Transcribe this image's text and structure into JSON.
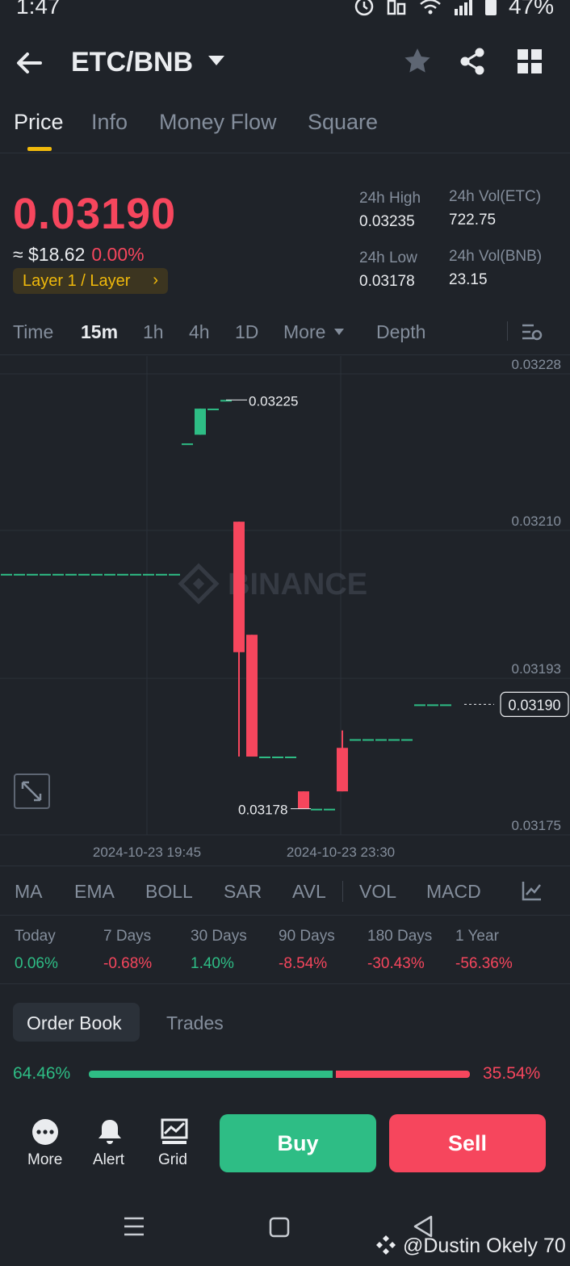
{
  "status": {
    "time": "1:47",
    "battery": "47%"
  },
  "header": {
    "pair": "ETC/BNB"
  },
  "tabs": [
    {
      "label": "Price"
    },
    {
      "label": "Info"
    },
    {
      "label": "Money Flow"
    },
    {
      "label": "Square"
    }
  ],
  "ticker": {
    "price": "0.03190",
    "usd": "≈ $18.62",
    "change": "0.00%",
    "tag": "Layer 1 / Layer",
    "high_label": "24h High",
    "high": "0.03235",
    "low_label": "24h Low",
    "low": "0.03178",
    "vol_etc_label": "24h Vol(ETC)",
    "vol_etc": "722.75",
    "vol_bnb_label": "24h Vol(BNB)",
    "vol_bnb": "23.15"
  },
  "intervals": [
    {
      "label": "Time"
    },
    {
      "label": "15m"
    },
    {
      "label": "1h"
    },
    {
      "label": "4h"
    },
    {
      "label": "1D"
    },
    {
      "label": "More"
    },
    {
      "label": "Depth"
    }
  ],
  "chart_data": {
    "type": "candlestick",
    "y_ticks": [
      "0.03228",
      "0.03210",
      "0.03193",
      "0.03175"
    ],
    "x_ticks": [
      "2024-10-23 19:45",
      "2024-10-23 23:30"
    ],
    "ylim": [
      0.03175,
      0.03228
    ],
    "watermark": "BINANCE",
    "last_price": "0.03190",
    "annotations": [
      {
        "text": "0.03225",
        "value": 0.03225
      },
      {
        "text": "0.03178",
        "value": 0.03178
      }
    ],
    "candles": [
      {
        "i": 0,
        "o": 0.03205,
        "h": 0.03205,
        "l": 0.03205,
        "c": 0.03205
      },
      {
        "i": 1,
        "o": 0.03205,
        "h": 0.03205,
        "l": 0.03205,
        "c": 0.03205
      },
      {
        "i": 2,
        "o": 0.03205,
        "h": 0.03205,
        "l": 0.03205,
        "c": 0.03205
      },
      {
        "i": 3,
        "o": 0.03205,
        "h": 0.03205,
        "l": 0.03205,
        "c": 0.03205
      },
      {
        "i": 4,
        "o": 0.03205,
        "h": 0.03205,
        "l": 0.03205,
        "c": 0.03205
      },
      {
        "i": 5,
        "o": 0.03205,
        "h": 0.03205,
        "l": 0.03205,
        "c": 0.03205
      },
      {
        "i": 6,
        "o": 0.03205,
        "h": 0.03205,
        "l": 0.03205,
        "c": 0.03205
      },
      {
        "i": 7,
        "o": 0.03205,
        "h": 0.03205,
        "l": 0.03205,
        "c": 0.03205
      },
      {
        "i": 8,
        "o": 0.03205,
        "h": 0.03205,
        "l": 0.03205,
        "c": 0.03205
      },
      {
        "i": 9,
        "o": 0.03205,
        "h": 0.03205,
        "l": 0.03205,
        "c": 0.03205
      },
      {
        "i": 10,
        "o": 0.03205,
        "h": 0.03205,
        "l": 0.03205,
        "c": 0.03205
      },
      {
        "i": 11,
        "o": 0.03205,
        "h": 0.03205,
        "l": 0.03205,
        "c": 0.03205
      },
      {
        "i": 12,
        "o": 0.03205,
        "h": 0.03205,
        "l": 0.03205,
        "c": 0.03205
      },
      {
        "i": 13,
        "o": 0.03205,
        "h": 0.03205,
        "l": 0.03205,
        "c": 0.03205
      },
      {
        "i": 14,
        "o": 0.0322,
        "h": 0.0322,
        "l": 0.0322,
        "c": 0.0322
      },
      {
        "i": 15,
        "o": 0.03221,
        "h": 0.03224,
        "l": 0.03221,
        "c": 0.03224
      },
      {
        "i": 16,
        "o": 0.03224,
        "h": 0.03224,
        "l": 0.03224,
        "c": 0.03224
      },
      {
        "i": 17,
        "o": 0.03225,
        "h": 0.03225,
        "l": 0.03225,
        "c": 0.03225
      },
      {
        "i": 18,
        "o": 0.03211,
        "h": 0.03211,
        "l": 0.03184,
        "c": 0.03196
      },
      {
        "i": 19,
        "o": 0.03198,
        "h": 0.03198,
        "l": 0.03184,
        "c": 0.03184
      },
      {
        "i": 20,
        "o": 0.03184,
        "h": 0.03184,
        "l": 0.03184,
        "c": 0.03184
      },
      {
        "i": 21,
        "o": 0.03184,
        "h": 0.03184,
        "l": 0.03184,
        "c": 0.03184
      },
      {
        "i": 22,
        "o": 0.03184,
        "h": 0.03184,
        "l": 0.03184,
        "c": 0.03184
      },
      {
        "i": 23,
        "o": 0.0318,
        "h": 0.0318,
        "l": 0.03178,
        "c": 0.03178
      },
      {
        "i": 24,
        "o": 0.03178,
        "h": 0.03178,
        "l": 0.03178,
        "c": 0.03178
      },
      {
        "i": 25,
        "o": 0.03178,
        "h": 0.03178,
        "l": 0.03178,
        "c": 0.03178
      },
      {
        "i": 26,
        "o": 0.03185,
        "h": 0.03187,
        "l": 0.0318,
        "c": 0.0318
      },
      {
        "i": 27,
        "o": 0.03186,
        "h": 0.03186,
        "l": 0.03186,
        "c": 0.03186
      },
      {
        "i": 28,
        "o": 0.03186,
        "h": 0.03186,
        "l": 0.03186,
        "c": 0.03186
      },
      {
        "i": 29,
        "o": 0.03186,
        "h": 0.03186,
        "l": 0.03186,
        "c": 0.03186
      },
      {
        "i": 30,
        "o": 0.03186,
        "h": 0.03186,
        "l": 0.03186,
        "c": 0.03186
      },
      {
        "i": 31,
        "o": 0.03186,
        "h": 0.03186,
        "l": 0.03186,
        "c": 0.03186
      },
      {
        "i": 32,
        "o": 0.0319,
        "h": 0.0319,
        "l": 0.0319,
        "c": 0.0319
      },
      {
        "i": 33,
        "o": 0.0319,
        "h": 0.0319,
        "l": 0.0319,
        "c": 0.0319
      },
      {
        "i": 34,
        "o": 0.0319,
        "h": 0.0319,
        "l": 0.0319,
        "c": 0.0319
      }
    ],
    "colors": {
      "up": "#2ebd85",
      "down": "#f6465d"
    }
  },
  "indicators": [
    {
      "label": "MA"
    },
    {
      "label": "EMA"
    },
    {
      "label": "BOLL"
    },
    {
      "label": "SAR"
    },
    {
      "label": "AVL"
    },
    {
      "label": "VOL"
    },
    {
      "label": "MACD"
    }
  ],
  "performance": [
    {
      "label": "Today",
      "value": "0.06%",
      "dir": "up"
    },
    {
      "label": "7 Days",
      "value": "-0.68%",
      "dir": "down"
    },
    {
      "label": "30 Days",
      "value": "1.40%",
      "dir": "up"
    },
    {
      "label": "90 Days",
      "value": "-8.54%",
      "dir": "down"
    },
    {
      "label": "180 Days",
      "value": "-30.43%",
      "dir": "down"
    },
    {
      "label": "1 Year",
      "value": "-56.36%",
      "dir": "down"
    }
  ],
  "orderbook": {
    "tab_active": "Order Book",
    "tab_other": "Trades",
    "buy_pct": "64.46%",
    "sell_pct": "35.54%",
    "buy_ratio": 0.6446
  },
  "bottom": {
    "more": "More",
    "alert": "Alert",
    "grid": "Grid",
    "buy": "Buy",
    "sell": "Sell"
  },
  "watermark_text": "@Dustin Okely 70"
}
